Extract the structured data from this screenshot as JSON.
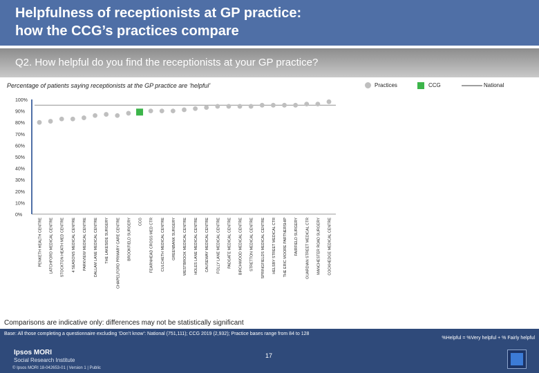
{
  "slide": {
    "title_line1": "Helpfulness of receptionists at GP practice:",
    "title_line2": "how the CCG’s practices compare",
    "question": "Q2. How helpful do you find the receptionists at your GP practice?",
    "caption": "Comparisons are indicative only: differences may not be statistically significant",
    "base": "Base: All those completing a questionnaire excluding ‘Don’t know’: National (751,111); CCG 2019 (2,932); Practice bases range from 84 to 128",
    "definition": "%Helpful = %Very helpful + % Fairly helpful",
    "brand_line1": "Ipsos MORI",
    "brand_line2": "Social Research Institute",
    "copyright": "© Ipsos MORI     18-042653-01 | Version 1 | Public",
    "page_number": "17"
  },
  "colors": {
    "title_bg": "#4f6fa6",
    "practice_marker": "#bfbfbf",
    "ccg_marker": "#3cb54a",
    "national_line": "#9e9e9e",
    "footer_bg": "#2f4a7a"
  },
  "chart_data": {
    "type": "scatter",
    "title": "Percentage of patients saying receptionists at the GP practice are ‘helpful’",
    "ylim": [
      0,
      100
    ],
    "yticks": [
      "0%",
      "10%",
      "20%",
      "30%",
      "40%",
      "50%",
      "60%",
      "70%",
      "80%",
      "90%",
      "100%"
    ],
    "legend": {
      "position": "top-right",
      "practices": "Practices",
      "ccg": "CCG",
      "national": "National"
    },
    "national_value": 95,
    "categories": [
      "PENKETH HEALTH CENTRE",
      "LATCHFORD MEDICAL CENTRE",
      "STOCKTON HEATH MED CENTRE",
      "4 SEASONS MEDICAL CENTRE",
      "PARKVIEW MEDICAL CENTRE",
      "DALLAM LANE MEDICAL CENTRE",
      "THE LAKESIDE SURGERY",
      "CHAPELFORD PRIMARY CARE CENTRE",
      "BROOKFIELD SURGERY",
      "CCG",
      "FEARNHEAD CROSS MED CTR",
      "CULCHETH MEDICAL CENTRE",
      "GREENBANK SURGERY",
      "WESTBROOK MEDICAL CENTRE",
      "HOLES LANE MEDICAL CENTRE",
      "CAUSEWAY MEDICAL CENTRE",
      "FOLLY LANE MEDICAL CENTRE",
      "PADGATE MEDICAL CENTRE",
      "BIRCHWOOD MEDICAL CENTRE",
      "STRETTON MEDICAL CENTRE",
      "SPRINGFIELDS MEDICAL CENTRE",
      "HELSBY STREET MEDICAL CTR",
      "THE ERIC MOORE PARTNERSHIP",
      "FAIRFIELD SURGERY",
      "GUARDIAN STREET MEDICAL CTR",
      "MANCHESTER ROAD SURGERY",
      "COCKHEDGE MEDICAL CENTRE"
    ],
    "values": [
      80,
      81,
      83,
      83,
      84,
      86,
      87,
      86,
      88,
      89,
      90,
      90,
      90,
      91,
      92,
      93,
      94,
      94,
      94,
      94,
      95,
      95,
      95,
      95,
      96,
      96,
      98
    ],
    "ccg_index": 9
  }
}
